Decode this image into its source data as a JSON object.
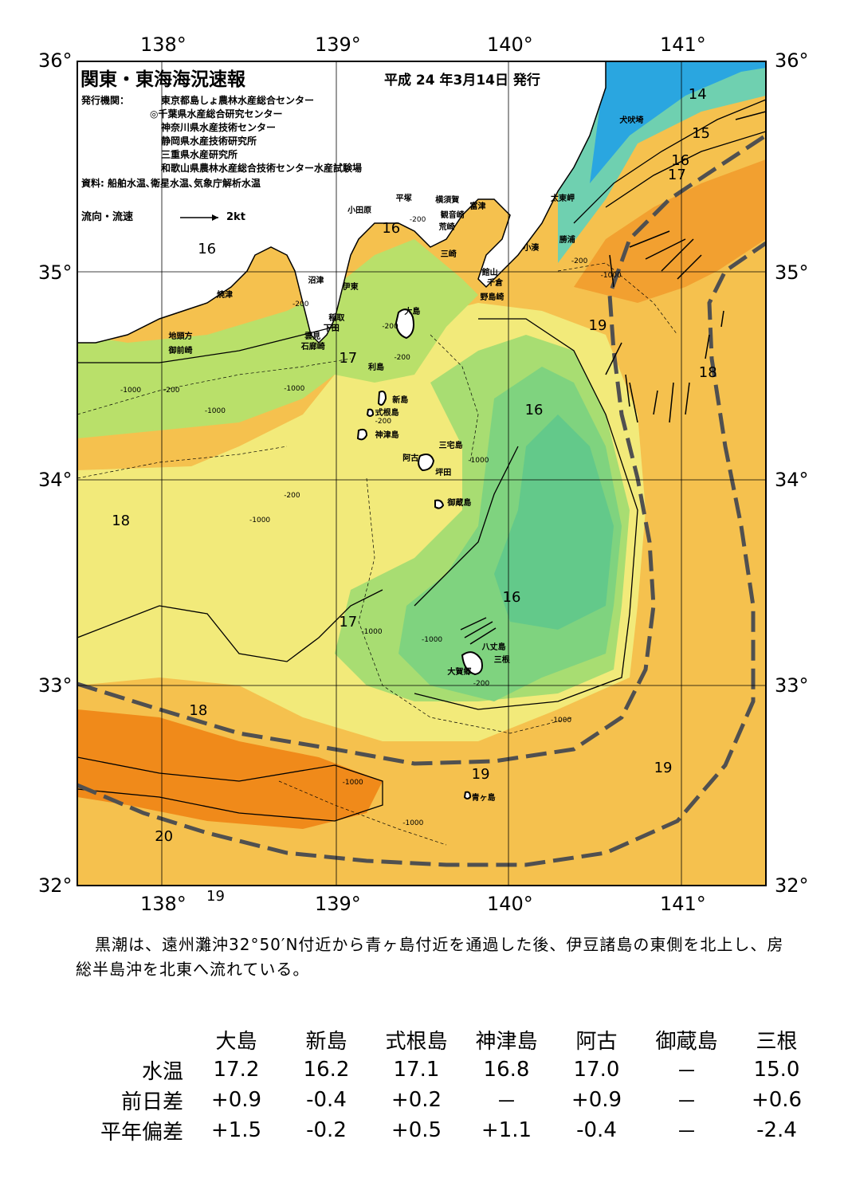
{
  "title": "関東・東海海況速報",
  "issue_date": "平成 24 年3月14日 発行",
  "publisher_label": "発行機関：",
  "publishers": [
    "東京都島しょ農林水産総合センター",
    "◎千葉県水産総合研究センター",
    "神奈川県水産技術センター",
    "静岡県水産技術研究所",
    "三重県水産研究所",
    "和歌山県農林水産総合技術センター水産試験場"
  ],
  "source": "資料: 船舶水温､衛星水温､気象庁解析水温",
  "legend": {
    "label": "流向・流速",
    "scale": "2kt"
  },
  "axes": {
    "lon_ticks": [
      "138°",
      "139°",
      "140°",
      "141°"
    ],
    "lat_ticks": [
      "36°",
      "35°",
      "34°",
      "33°",
      "32°"
    ],
    "lon_range": [
      137.5,
      141.5
    ],
    "lat_range": [
      32,
      36
    ]
  },
  "colors": {
    "cold": "#2aa6e0",
    "cool": "#7fd37f",
    "mid": "#f2ea7a",
    "warm": "#f5b040",
    "hot": "#f08a1a",
    "kuroshio_axis": "#505050"
  },
  "isotherm_labels": [
    {
      "t": "14",
      "lon": 141.05,
      "lat": 35.88
    },
    {
      "t": "15",
      "lon": 141.07,
      "lat": 35.69
    },
    {
      "t": "16",
      "lon": 140.95,
      "lat": 35.56
    },
    {
      "t": "17",
      "lon": 140.93,
      "lat": 35.49
    },
    {
      "t": "16",
      "lon": 138.2,
      "lat": 35.13
    },
    {
      "t": "16",
      "lon": 139.27,
      "lat": 35.23
    },
    {
      "t": "17",
      "lon": 139.02,
      "lat": 34.6
    },
    {
      "t": "19",
      "lon": 140.47,
      "lat": 34.76
    },
    {
      "t": "18",
      "lon": 141.11,
      "lat": 34.53
    },
    {
      "t": "16",
      "lon": 140.1,
      "lat": 34.35
    },
    {
      "t": "18",
      "lon": 137.7,
      "lat": 33.81
    },
    {
      "t": "16",
      "lon": 139.97,
      "lat": 33.44
    },
    {
      "t": "17",
      "lon": 139.02,
      "lat": 33.32
    },
    {
      "t": "18",
      "lon": 138.15,
      "lat": 32.89
    },
    {
      "t": "19",
      "lon": 139.79,
      "lat": 32.58
    },
    {
      "t": "19",
      "lon": 140.85,
      "lat": 32.61
    },
    {
      "t": "20",
      "lon": 137.95,
      "lat": 32.28
    },
    {
      "t": "19",
      "lon": 138.25,
      "lat": 31.99
    }
  ],
  "depth_labels": [
    {
      "t": "-200",
      "lon": 139.43,
      "lat": 35.25
    },
    {
      "t": "-200",
      "lon": 140.37,
      "lat": 35.05
    },
    {
      "t": "-1000",
      "lon": 140.54,
      "lat": 34.98
    },
    {
      "t": "-200",
      "lon": 138.75,
      "lat": 34.84
    },
    {
      "t": "-200",
      "lon": 139.27,
      "lat": 34.73
    },
    {
      "t": "-200",
      "lon": 139.34,
      "lat": 34.58
    },
    {
      "t": "-200",
      "lon": 138.0,
      "lat": 34.42
    },
    {
      "t": "-1000",
      "lon": 138.7,
      "lat": 34.43
    },
    {
      "t": "-1000",
      "lon": 137.75,
      "lat": 34.42
    },
    {
      "t": "-1000",
      "lon": 138.24,
      "lat": 34.32
    },
    {
      "t": "-200",
      "lon": 139.23,
      "lat": 34.27
    },
    {
      "t": "-1000",
      "lon": 139.77,
      "lat": 34.08
    },
    {
      "t": "-200",
      "lon": 138.7,
      "lat": 33.91
    },
    {
      "t": "-1000",
      "lon": 138.5,
      "lat": 33.79
    },
    {
      "t": "-1000",
      "lon": 139.15,
      "lat": 33.25
    },
    {
      "t": "-1000",
      "lon": 139.5,
      "lat": 33.21
    },
    {
      "t": "-200",
      "lon": 139.8,
      "lat": 33.0
    },
    {
      "t": "-1000",
      "lon": 140.25,
      "lat": 32.82
    },
    {
      "t": "-1000",
      "lon": 139.04,
      "lat": 32.52
    },
    {
      "t": "-1000",
      "lon": 139.39,
      "lat": 32.32
    }
  ],
  "place_names": [
    {
      "t": "犬吠埼",
      "lon": 140.65,
      "lat": 35.75
    },
    {
      "t": "太東岬",
      "lon": 140.25,
      "lat": 35.37
    },
    {
      "t": "勝浦",
      "lon": 140.3,
      "lat": 35.17
    },
    {
      "t": "小湊",
      "lon": 140.09,
      "lat": 35.13
    },
    {
      "t": "富津",
      "lon": 139.78,
      "lat": 35.33
    },
    {
      "t": "横須賀",
      "lon": 139.58,
      "lat": 35.36
    },
    {
      "t": "平塚",
      "lon": 139.35,
      "lat": 35.37
    },
    {
      "t": "観音崎",
      "lon": 139.61,
      "lat": 35.29
    },
    {
      "t": "荒崎",
      "lon": 139.6,
      "lat": 35.23
    },
    {
      "t": "三崎",
      "lon": 139.61,
      "lat": 35.1
    },
    {
      "t": "小田原",
      "lon": 139.07,
      "lat": 35.31
    },
    {
      "t": "館山",
      "lon": 139.85,
      "lat": 35.01
    },
    {
      "t": "千倉",
      "lon": 139.88,
      "lat": 34.96
    },
    {
      "t": "野島崎",
      "lon": 139.84,
      "lat": 34.89
    },
    {
      "t": "沼津",
      "lon": 138.84,
      "lat": 34.97
    },
    {
      "t": "伊東",
      "lon": 139.04,
      "lat": 34.94
    },
    {
      "t": "焼津",
      "lon": 138.31,
      "lat": 34.9
    },
    {
      "t": "大島",
      "lon": 139.4,
      "lat": 34.82
    },
    {
      "t": "稲取",
      "lon": 138.96,
      "lat": 34.79
    },
    {
      "t": "下田",
      "lon": 138.93,
      "lat": 34.74
    },
    {
      "t": "雲見",
      "lon": 138.82,
      "lat": 34.7
    },
    {
      "t": "石廊崎",
      "lon": 138.8,
      "lat": 34.65
    },
    {
      "t": "地頭方",
      "lon": 138.03,
      "lat": 34.7
    },
    {
      "t": "御前崎",
      "lon": 138.03,
      "lat": 34.63
    },
    {
      "t": "利島",
      "lon": 139.19,
      "lat": 34.55
    },
    {
      "t": "新島",
      "lon": 139.33,
      "lat": 34.39
    },
    {
      "t": "式根島",
      "lon": 139.23,
      "lat": 34.33
    },
    {
      "t": "神津島",
      "lon": 139.23,
      "lat": 34.22
    },
    {
      "t": "阿古",
      "lon": 139.39,
      "lat": 34.11
    },
    {
      "t": "三宅島",
      "lon": 139.6,
      "lat": 34.17
    },
    {
      "t": "坪田",
      "lon": 139.58,
      "lat": 34.04
    },
    {
      "t": "御蔵島",
      "lon": 139.65,
      "lat": 33.89
    },
    {
      "t": "八丈島",
      "lon": 139.85,
      "lat": 33.19
    },
    {
      "t": "三根",
      "lon": 139.92,
      "lat": 33.13
    },
    {
      "t": "大賀郷",
      "lon": 139.65,
      "lat": 33.07
    },
    {
      "t": "青ヶ島",
      "lon": 139.79,
      "lat": 32.46
    }
  ],
  "summary": "黒潮は、遠州灘沖32°50′N付近から青ヶ島付近を通過した後、伊豆諸島の東側を北上し、房総半島沖を北東へ流れている。",
  "table": {
    "stations": [
      "大島",
      "新島",
      "式根島",
      "神津島",
      "阿古",
      "御蔵島",
      "三根"
    ],
    "rows": [
      {
        "label": "水温",
        "values": [
          "17.2",
          "16.2",
          "17.1",
          "16.8",
          "17.0",
          "－",
          "15.0"
        ]
      },
      {
        "label": "前日差",
        "values": [
          "+0.9",
          "-0.4",
          "+0.2",
          "－",
          "+0.9",
          "－",
          "+0.6"
        ]
      },
      {
        "label": "平年偏差",
        "values": [
          "+1.5",
          "-0.2",
          "+0.5",
          "+1.1",
          "-0.4",
          "－",
          "-2.4"
        ]
      }
    ]
  }
}
